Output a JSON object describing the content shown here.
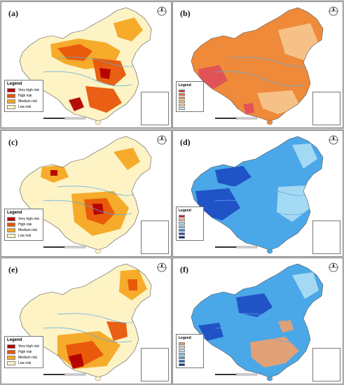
{
  "panels": [
    {
      "id": "a",
      "label": "(a)",
      "legend_kind": "risk"
    },
    {
      "id": "b",
      "label": "(b)",
      "legend_kind": "numeric",
      "palette": "orange"
    },
    {
      "id": "c",
      "label": "(c)",
      "legend_kind": "risk"
    },
    {
      "id": "d",
      "label": "(d)",
      "legend_kind": "numeric",
      "palette": "blue"
    },
    {
      "id": "e",
      "label": "(e)",
      "legend_kind": "risk"
    },
    {
      "id": "f",
      "label": "(f)",
      "legend_kind": "numeric",
      "palette": "mixed"
    }
  ],
  "risk_legend": {
    "title": "Legend",
    "items": [
      {
        "label": "Very high risk",
        "color": "#b30000"
      },
      {
        "label": "High risk",
        "color": "#e8560a"
      },
      {
        "label": "Medium risk",
        "color": "#f5a623"
      },
      {
        "label": "Low risk",
        "color": "#fdf3c4"
      }
    ]
  },
  "numeric_legend": {
    "title": "Legend",
    "orange_colors": [
      "#d7303f",
      "#ee6f3a",
      "#f39a44",
      "#f7bd6b",
      "#f9d79c",
      "#cbe7f3"
    ],
    "blue_colors": [
      "#e41a1c",
      "#fdbb84",
      "#a6dcef",
      "#6fc3ec",
      "#3b8fd9",
      "#1f4fbf",
      "#0b2a8a"
    ],
    "mixed_colors": [
      "#e89a6a",
      "#fcd9b8",
      "#bfe3f5",
      "#7cc6ee",
      "#3f9de0",
      "#1f61c8",
      "#12358f"
    ]
  },
  "map_colors": {
    "risk_base": "#fdf3c4",
    "risk_medium": "#f5a623",
    "risk_high": "#e8560a",
    "risk_very_high": "#b30000",
    "orange_base": "#ee8a3a",
    "orange_light": "#f5c48a",
    "orange_red": "#e0505a",
    "blue_base": "#4aa8e8",
    "blue_dark": "#1e4fc4",
    "blue_light": "#a9dbf3",
    "mixed_orange": "#e8a070",
    "river": "#5aa9e6",
    "border": "#555555"
  }
}
